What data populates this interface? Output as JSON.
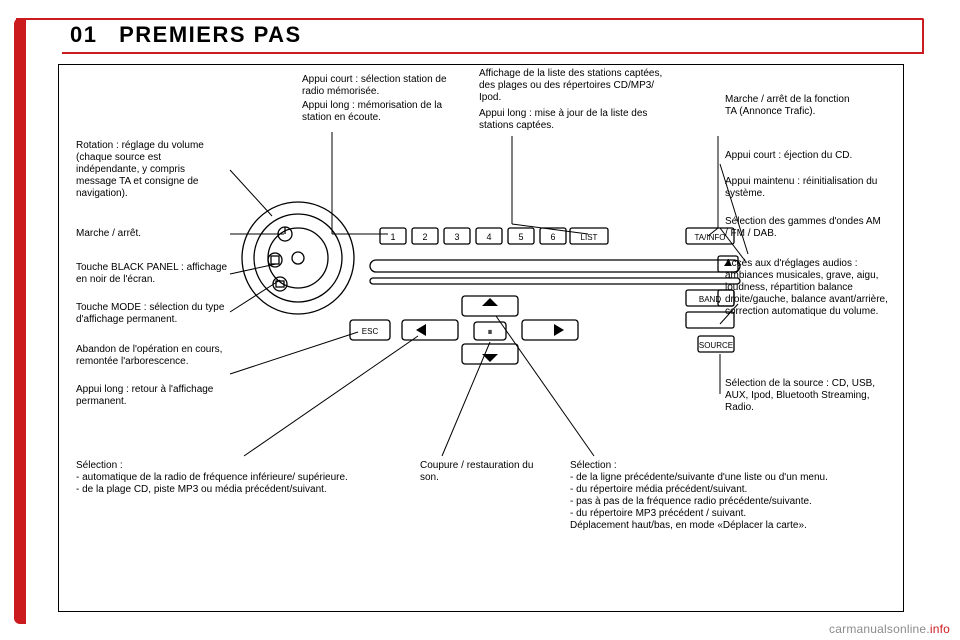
{
  "title_num": "01",
  "title_text": "PREMIERS PAS",
  "title_fontsize": "22px",
  "footer_prefix": "carmanualsonline.",
  "footer_suffix": "info",
  "labels": {
    "top_a": "Appui court : sélection station de radio mémorisée.",
    "top_a2": "Appui long : mémorisation de la station en écoute.",
    "top_b": "Affichage de la liste des stations captées, des plages ou des répertoires CD/MP3/ Ipod.",
    "top_b2": "Appui long : mise à jour de la liste des stations captées.",
    "top_c": "Marche / arrêt de la fonction TA (Annonce Trafic).",
    "l_rot": "Rotation : réglage du volume (chaque source est indépendante, y compris message TA et consigne de navigation).",
    "l_onoff": "Marche / arrêt.",
    "l_black": "Touche BLACK PANEL : affichage en noir de l'écran.",
    "l_mode": "Touche MODE : sélection du type d'affichage permanent.",
    "l_esc": "Abandon de l'opération en cours, remontée l'arborescence.",
    "l_esc2": "Appui long : retour à l'affichage permanent.",
    "r_eject": "Appui court : éjection du CD.",
    "r_eject2": "Appui maintenu : réinitialisation du système.",
    "r_band": "Sélection des gammes d'ondes AM / FM / DAB.",
    "r_audio": "Accès aux d'réglages audios : ambiances musicales, grave, aigu, loudness, répartition balance droite/gauche, balance avant/arrière, correction automatique du volume.",
    "r_source": "Sélection de la source : CD, USB, AUX, Ipod, Bluetooth Streaming, Radio.",
    "b_mute": "Coupure / restauration du son.",
    "b_left_title": "Sélection :",
    "b_left_1": "automatique de la radio de fréquence inférieure/ supérieure.",
    "b_left_2": "de la plage CD, piste MP3 ou média précédent/suivant.",
    "b_right_title": "Sélection :",
    "b_right_1": "de la ligne précédente/suivante d'une liste ou d'un menu.",
    "b_right_2": "du répertoire média précédent/suivant.",
    "b_right_3": "pas à pas de la fréquence radio précédente/suivante.",
    "b_right_4": "du répertoire MP3 précédent / suivant.",
    "b_right_5": "Déplacement haut/bas, en mode «Déplacer la carte»."
  },
  "device": {
    "presets": [
      "1",
      "2",
      "3",
      "4",
      "5",
      "6"
    ],
    "btn_list": "LIST",
    "btn_ta": "TA/INFO",
    "btn_band": "BAND",
    "btn_source": "SOURCE",
    "btn_esc": "ESC",
    "btn_mute": "⏸",
    "stroke": "#000",
    "fill": "#fff"
  },
  "colors": {
    "accent": "#cc1b1f",
    "text": "#000000",
    "bg": "#ffffff",
    "footer_gray": "#8c8c8c"
  }
}
